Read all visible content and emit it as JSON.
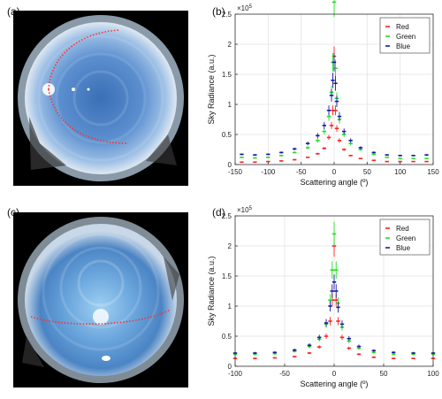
{
  "panels": {
    "a": {
      "label": "(a)"
    },
    "b": {
      "label": "(b)"
    },
    "c": {
      "label": "(c)"
    },
    "d": {
      "label": "(d)"
    }
  },
  "colors": {
    "red": "#ff2020",
    "green": "#20e020",
    "blue": "#1a1aa0"
  },
  "chart_data": [
    {
      "panel": "(b)",
      "type": "scatter",
      "xlabel": "Scattering angle (º)",
      "ylabel": "Sky Radiance (a.u.)",
      "exponent_label": "×10^5",
      "xlim": [
        -150,
        150
      ],
      "ylim": [
        0,
        2.5
      ],
      "xticks": [
        -150,
        -100,
        -50,
        0,
        50,
        100,
        150
      ],
      "yticks": [
        0,
        0.5,
        1,
        1.5,
        2,
        2.5
      ],
      "grid": true,
      "legend_position": "top-right",
      "series": [
        {
          "name": "Red",
          "x": [
            -140,
            -120,
            -100,
            -80,
            -60,
            -40,
            -25,
            -15,
            -8,
            -4,
            -2,
            0,
            2,
            4,
            8,
            15,
            25,
            40,
            60,
            80,
            100,
            120,
            140
          ],
          "y": [
            0.04,
            0.04,
            0.05,
            0.06,
            0.08,
            0.12,
            0.18,
            0.27,
            0.45,
            0.65,
            0.9,
            1.8,
            0.9,
            0.6,
            0.4,
            0.25,
            0.15,
            0.1,
            0.07,
            0.05,
            0.05,
            0.05,
            0.05
          ]
        },
        {
          "name": "Green",
          "x": [
            -140,
            -120,
            -100,
            -80,
            -60,
            -40,
            -25,
            -15,
            -8,
            -4,
            -2,
            0,
            2,
            4,
            8,
            15,
            25,
            40,
            60,
            80,
            100,
            120,
            140
          ],
          "y": [
            0.12,
            0.11,
            0.12,
            0.15,
            0.2,
            0.28,
            0.4,
            0.55,
            0.8,
            1.2,
            1.7,
            2.7,
            1.6,
            1.1,
            0.75,
            0.5,
            0.35,
            0.25,
            0.17,
            0.12,
            0.1,
            0.1,
            0.1
          ]
        },
        {
          "name": "Blue",
          "x": [
            -140,
            -120,
            -100,
            -80,
            -60,
            -40,
            -25,
            -15,
            -8,
            -4,
            -2,
            0,
            2,
            4,
            8,
            15,
            25,
            40,
            60,
            80,
            100,
            120,
            140
          ],
          "y": [
            0.17,
            0.16,
            0.17,
            0.2,
            0.26,
            0.35,
            0.48,
            0.65,
            0.9,
            1.15,
            1.4,
            1.7,
            1.35,
            1.05,
            0.8,
            0.55,
            0.4,
            0.28,
            0.2,
            0.16,
            0.15,
            0.15,
            0.16
          ]
        }
      ]
    },
    {
      "panel": "(d)",
      "type": "scatter",
      "xlabel": "Scattering angle (º)",
      "ylabel": "Sky Radiance (a.u.)",
      "exponent_label": "×10^5",
      "xlim": [
        -100,
        100
      ],
      "ylim": [
        0,
        2.5
      ],
      "xticks": [
        -100,
        -50,
        0,
        50,
        100
      ],
      "yticks": [
        0,
        0.5,
        1,
        1.5,
        2,
        2.5
      ],
      "grid": true,
      "legend_position": "top-right",
      "series": [
        {
          "name": "Red",
          "x": [
            -100,
            -80,
            -60,
            -40,
            -25,
            -15,
            -8,
            -4,
            -2,
            0,
            2,
            4,
            8,
            15,
            25,
            40,
            60,
            80,
            100
          ],
          "y": [
            0.13,
            0.13,
            0.14,
            0.16,
            0.22,
            0.32,
            0.5,
            0.75,
            1.1,
            2.0,
            1.1,
            0.75,
            0.48,
            0.3,
            0.2,
            0.15,
            0.13,
            0.13,
            0.13
          ]
        },
        {
          "name": "Green",
          "x": [
            -100,
            -80,
            -60,
            -40,
            -25,
            -15,
            -8,
            -4,
            -2,
            0,
            2,
            4,
            8,
            15,
            25,
            40,
            60,
            80,
            100
          ],
          "y": [
            0.2,
            0.2,
            0.21,
            0.25,
            0.33,
            0.45,
            0.7,
            1.1,
            1.6,
            2.2,
            1.6,
            1.05,
            0.65,
            0.42,
            0.3,
            0.23,
            0.2,
            0.2,
            0.2
          ]
        },
        {
          "name": "Blue",
          "x": [
            -100,
            -80,
            -60,
            -40,
            -25,
            -15,
            -8,
            -4,
            -2,
            0,
            2,
            4,
            8,
            15,
            25,
            40,
            60,
            80,
            100
          ],
          "y": [
            0.22,
            0.22,
            0.23,
            0.27,
            0.35,
            0.48,
            0.72,
            1.0,
            1.25,
            1.4,
            1.25,
            0.98,
            0.7,
            0.46,
            0.33,
            0.26,
            0.23,
            0.22,
            0.22
          ]
        }
      ]
    }
  ]
}
